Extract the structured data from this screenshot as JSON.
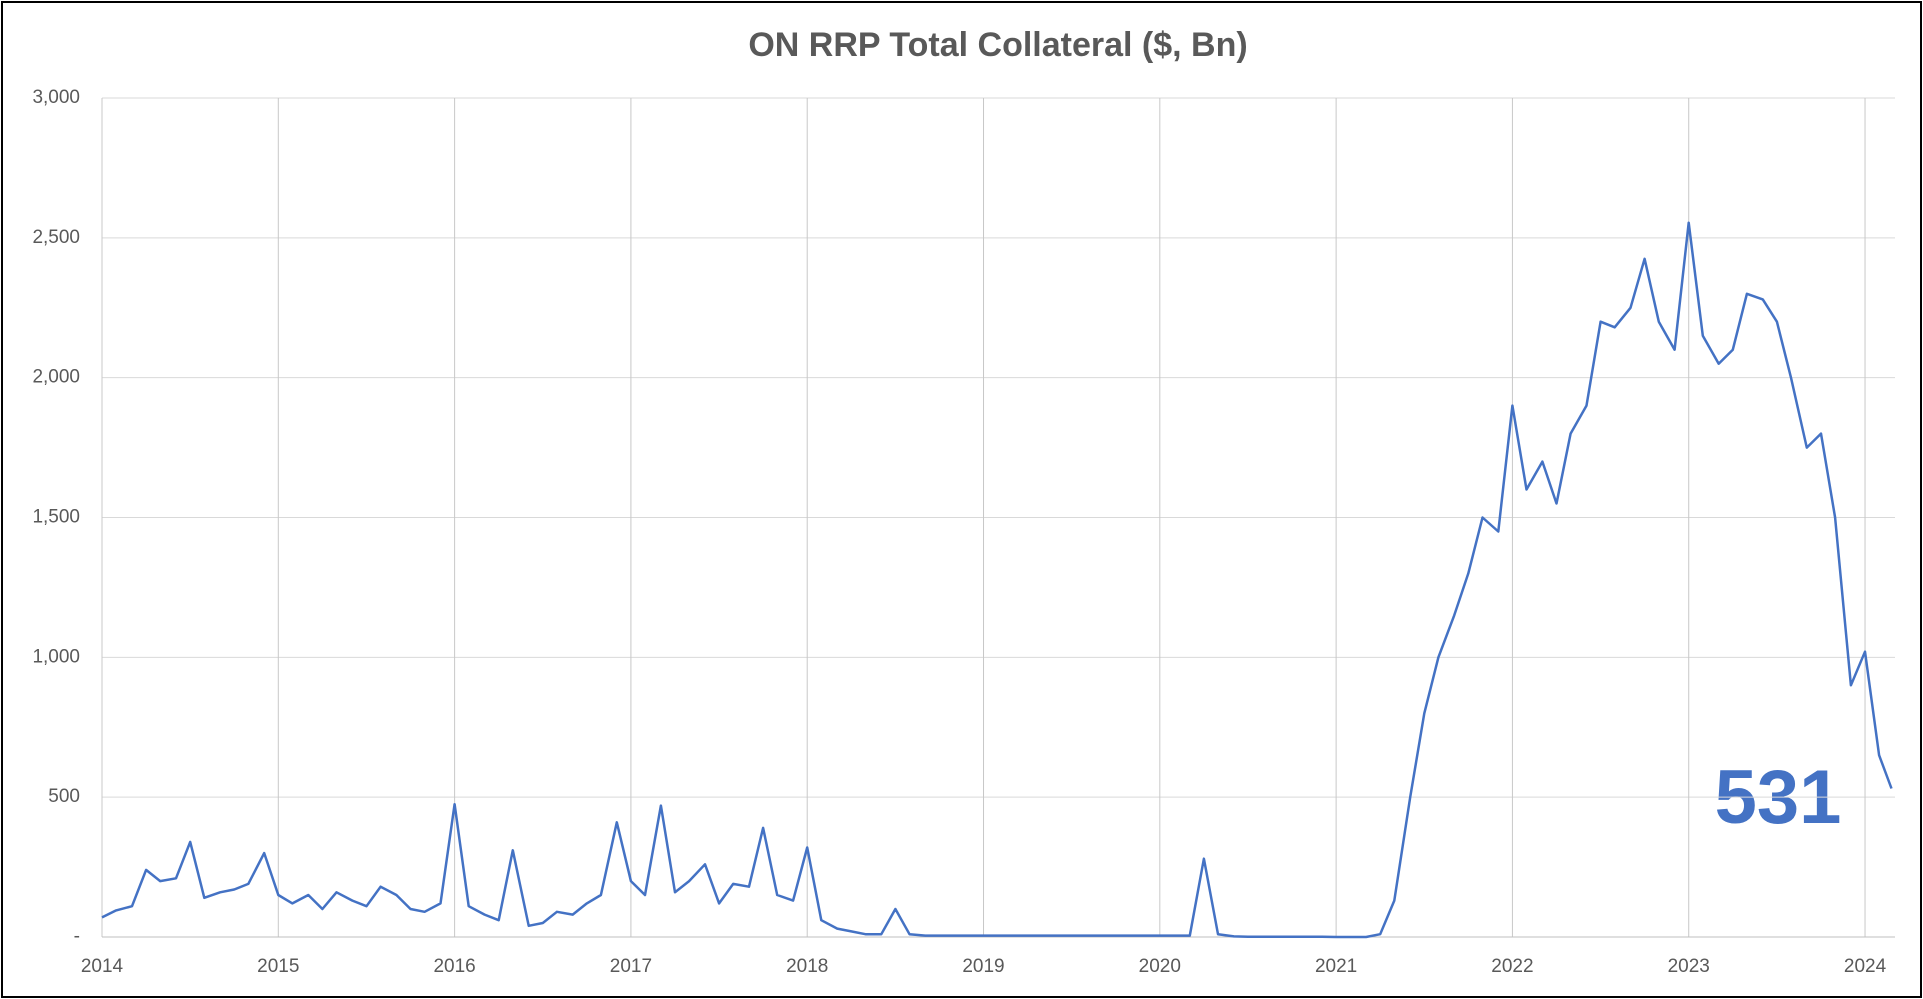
{
  "chart_data": {
    "type": "line",
    "title": "ON RRP Total Collateral ($, Bn)",
    "annotation": "531",
    "x": [
      2014.0,
      2014.08,
      2014.17,
      2014.25,
      2014.33,
      2014.42,
      2014.5,
      2014.58,
      2014.67,
      2014.75,
      2014.83,
      2014.92,
      2015.0,
      2015.08,
      2015.17,
      2015.25,
      2015.33,
      2015.42,
      2015.5,
      2015.58,
      2015.67,
      2015.75,
      2015.83,
      2015.92,
      2016.0,
      2016.08,
      2016.17,
      2016.25,
      2016.33,
      2016.42,
      2016.5,
      2016.58,
      2016.67,
      2016.75,
      2016.83,
      2016.92,
      2017.0,
      2017.08,
      2017.17,
      2017.25,
      2017.33,
      2017.42,
      2017.5,
      2017.58,
      2017.67,
      2017.75,
      2017.83,
      2017.92,
      2018.0,
      2018.08,
      2018.17,
      2018.25,
      2018.33,
      2018.42,
      2018.5,
      2018.58,
      2018.67,
      2018.75,
      2018.83,
      2018.92,
      2019.0,
      2019.08,
      2019.17,
      2019.25,
      2019.33,
      2019.42,
      2019.5,
      2019.58,
      2019.67,
      2019.75,
      2019.83,
      2019.92,
      2020.0,
      2020.08,
      2020.17,
      2020.25,
      2020.33,
      2020.42,
      2020.5,
      2020.58,
      2020.67,
      2020.75,
      2020.83,
      2020.92,
      2021.0,
      2021.08,
      2021.17,
      2021.25,
      2021.33,
      2021.42,
      2021.5,
      2021.58,
      2021.67,
      2021.75,
      2021.83,
      2021.92,
      2022.0,
      2022.08,
      2022.17,
      2022.25,
      2022.33,
      2022.42,
      2022.5,
      2022.58,
      2022.67,
      2022.75,
      2022.83,
      2022.92,
      2023.0,
      2023.08,
      2023.17,
      2023.25,
      2023.33,
      2023.42,
      2023.5,
      2023.58,
      2023.67,
      2023.75,
      2023.83,
      2023.92,
      2024.0,
      2024.08,
      2024.15
    ],
    "series": [
      {
        "color": "#4472c4",
        "values": [
          70,
          95,
          110,
          240,
          200,
          210,
          340,
          140,
          160,
          170,
          190,
          300,
          150,
          120,
          150,
          100,
          160,
          130,
          110,
          180,
          150,
          100,
          90,
          120,
          475,
          110,
          80,
          60,
          310,
          40,
          50,
          90,
          80,
          120,
          150,
          410,
          200,
          150,
          470,
          160,
          200,
          260,
          120,
          190,
          180,
          390,
          150,
          130,
          320,
          60,
          30,
          20,
          10,
          10,
          100,
          10,
          5,
          5,
          5,
          5,
          5,
          5,
          5,
          5,
          5,
          5,
          5,
          5,
          5,
          5,
          5,
          5,
          5,
          5,
          5,
          280,
          10,
          2,
          1,
          1,
          1,
          1,
          1,
          1,
          0,
          0,
          0,
          10,
          130,
          500,
          800,
          1000,
          1150,
          1300,
          1500,
          1450,
          1900,
          1600,
          1700,
          1550,
          1800,
          1900,
          2200,
          2180,
          2250,
          2425,
          2200,
          2100,
          2554,
          2150,
          2050,
          2100,
          2300,
          2280,
          2200,
          2000,
          1750,
          1800,
          1500,
          900,
          1020,
          650,
          531
        ]
      }
    ],
    "xlim": [
      2014,
      2024.17
    ],
    "xticks": [
      2014,
      2015,
      2016,
      2017,
      2018,
      2019,
      2020,
      2021,
      2022,
      2023,
      2024
    ],
    "ylim": [
      0,
      3000
    ],
    "yticks": [
      {
        "value": 0,
        "label": "-"
      },
      500,
      {
        "value": 1000,
        "label": "1,000"
      },
      {
        "value": 1500,
        "label": "1,500"
      },
      {
        "value": 2000,
        "label": "2,000"
      },
      {
        "value": 2500,
        "label": "2,500"
      },
      {
        "value": 3000,
        "label": "3,000"
      }
    ],
    "grid": true
  }
}
